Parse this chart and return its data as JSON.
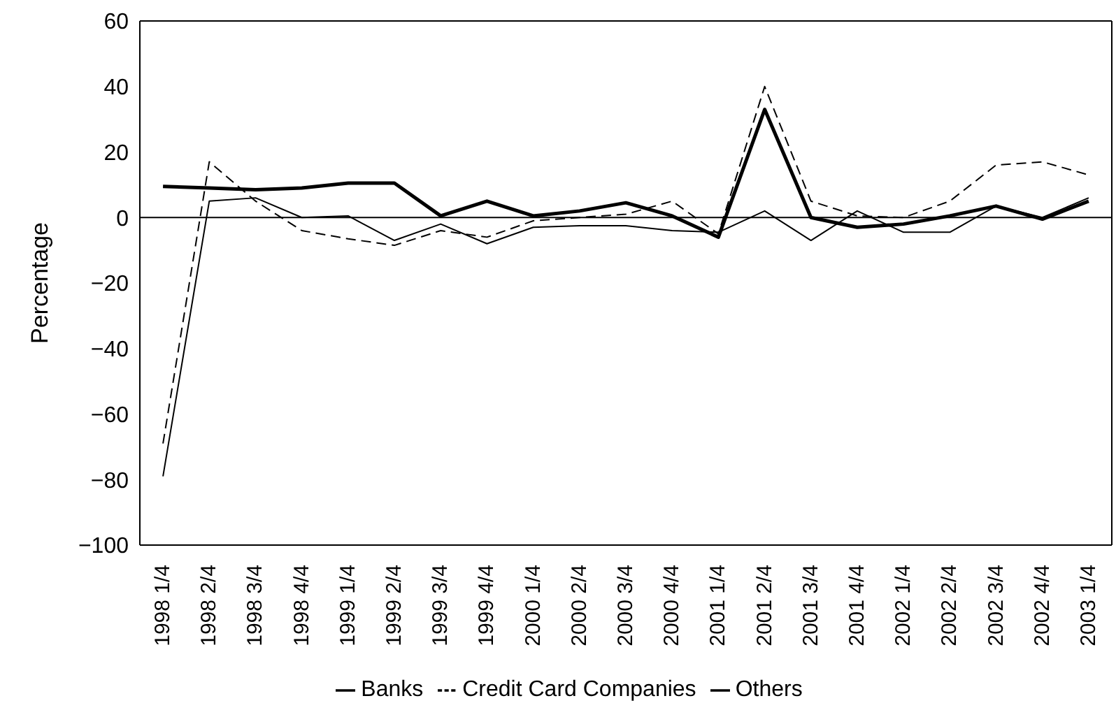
{
  "chart_data": {
    "type": "line",
    "ylabel": "Percentage",
    "categories": [
      "1998 1/4",
      "1998 2/4",
      "1998 3/4",
      "1998 4/4",
      "1999 1/4",
      "1999 2/4",
      "1999 3/4",
      "1999 4/4",
      "2000 1/4",
      "2000 2/4",
      "2000 3/4",
      "2000 4/4",
      "2001 1/4",
      "2001 2/4",
      "2001 3/4",
      "2001 4/4",
      "2002 1/4",
      "2002 2/4",
      "2002 3/4",
      "2002 4/4",
      "2003 1/4"
    ],
    "series": [
      {
        "name": "Banks",
        "color": "#000000",
        "line_style": "solid",
        "values": [
          -79,
          5,
          6,
          0,
          0.5,
          -7,
          -2,
          -8,
          -3,
          -2.5,
          -2.5,
          -4,
          -4.5,
          2,
          -7,
          2,
          -4.5,
          -4.5,
          3.5,
          0,
          6
        ]
      },
      {
        "name": "Credit Card Companies",
        "color": "#000000",
        "line_style": "dashed",
        "values": [
          -69,
          17,
          5,
          -4,
          -6.5,
          -8.5,
          -4,
          -6,
          -1,
          0,
          1,
          5,
          -5,
          40,
          5,
          0.5,
          0,
          5,
          16,
          17,
          13
        ]
      },
      {
        "name": "Others",
        "color": "#000000",
        "line_style": "solid",
        "values": [
          9.5,
          9,
          8.5,
          9,
          10.5,
          10.5,
          0.5,
          5,
          0.5,
          2,
          4.5,
          0.5,
          -6,
          33,
          0,
          -3,
          -2,
          0.5,
          3.5,
          -0.5,
          5
        ]
      }
    ],
    "ylim": [
      -100,
      60
    ],
    "yticks": [
      {
        "value": -100,
        "label": "−100"
      },
      {
        "value": -80,
        "label": "−80"
      },
      {
        "value": -60,
        "label": "−60"
      },
      {
        "value": -40,
        "label": "−40"
      },
      {
        "value": -20,
        "label": "−20"
      },
      0,
      20,
      40,
      60
    ],
    "ref_lines": [
      {
        "axis": "y",
        "value": 0,
        "color": "#000000"
      }
    ],
    "grid": false,
    "legend": "bottom",
    "marker": "none"
  }
}
